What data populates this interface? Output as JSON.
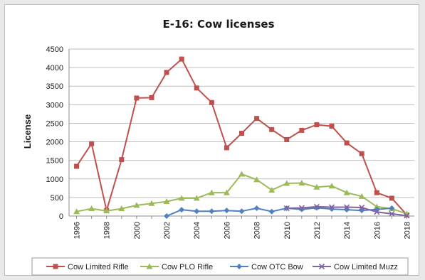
{
  "chart_data": {
    "type": "line",
    "title": "E-16: Cow licenses",
    "ylabel": "License",
    "xlabel": "",
    "ylim": [
      0,
      4500
    ],
    "yticks": [
      0,
      500,
      1000,
      1500,
      2000,
      2500,
      3000,
      3500,
      4000,
      4500
    ],
    "xlim": [
      1995.5,
      2018.5
    ],
    "xticks": [
      1996,
      1998,
      2000,
      2002,
      2004,
      2006,
      2008,
      2010,
      2012,
      2014,
      2016,
      2018
    ],
    "grid": "horizontal",
    "legend_position": "bottom",
    "series": [
      {
        "name": "Cow Limited Rifle",
        "color": "#c0504d",
        "marker": "square",
        "points": [
          [
            1996,
            1340
          ],
          [
            1997,
            1950
          ],
          [
            1998,
            150
          ],
          [
            1999,
            1520
          ],
          [
            2000,
            3180
          ],
          [
            2001,
            3190
          ],
          [
            2002,
            3870
          ],
          [
            2003,
            4230
          ],
          [
            2004,
            3450
          ],
          [
            2005,
            3060
          ],
          [
            2006,
            1840
          ],
          [
            2007,
            2230
          ],
          [
            2008,
            2630
          ],
          [
            2009,
            2330
          ],
          [
            2010,
            2060
          ],
          [
            2011,
            2310
          ],
          [
            2012,
            2460
          ],
          [
            2013,
            2420
          ],
          [
            2014,
            1970
          ],
          [
            2015,
            1680
          ],
          [
            2016,
            630
          ],
          [
            2017,
            480
          ],
          [
            2018,
            30
          ]
        ]
      },
      {
        "name": "Cow PLO Rifle",
        "color": "#9bbb59",
        "marker": "triangle",
        "points": [
          [
            1996,
            120
          ],
          [
            1997,
            200
          ],
          [
            1998,
            140
          ],
          [
            1999,
            200
          ],
          [
            2000,
            290
          ],
          [
            2001,
            340
          ],
          [
            2002,
            390
          ],
          [
            2003,
            480
          ],
          [
            2004,
            480
          ],
          [
            2005,
            630
          ],
          [
            2006,
            630
          ],
          [
            2007,
            1130
          ],
          [
            2008,
            980
          ],
          [
            2009,
            700
          ],
          [
            2010,
            880
          ],
          [
            2011,
            890
          ],
          [
            2012,
            780
          ],
          [
            2013,
            810
          ],
          [
            2014,
            630
          ],
          [
            2015,
            530
          ],
          [
            2016,
            250
          ],
          [
            2017,
            200
          ],
          [
            2018,
            60
          ]
        ]
      },
      {
        "name": "Cow OTC Bow",
        "color": "#4f81bd",
        "marker": "diamond",
        "points": [
          [
            2002,
            0
          ],
          [
            2003,
            170
          ],
          [
            2004,
            130
          ],
          [
            2005,
            130
          ],
          [
            2006,
            150
          ],
          [
            2007,
            130
          ],
          [
            2008,
            210
          ],
          [
            2009,
            120
          ],
          [
            2010,
            210
          ],
          [
            2011,
            180
          ],
          [
            2012,
            220
          ],
          [
            2013,
            190
          ],
          [
            2014,
            170
          ],
          [
            2015,
            150
          ],
          [
            2016,
            180
          ],
          [
            2017,
            210
          ]
        ]
      },
      {
        "name": "Cow Limited Muzz",
        "color": "#8064a2",
        "marker": "x",
        "points": [
          [
            2010,
            210
          ],
          [
            2011,
            220
          ],
          [
            2012,
            250
          ],
          [
            2013,
            240
          ],
          [
            2014,
            240
          ],
          [
            2015,
            230
          ],
          [
            2016,
            110
          ],
          [
            2017,
            60
          ],
          [
            2018,
            10
          ]
        ]
      }
    ]
  }
}
